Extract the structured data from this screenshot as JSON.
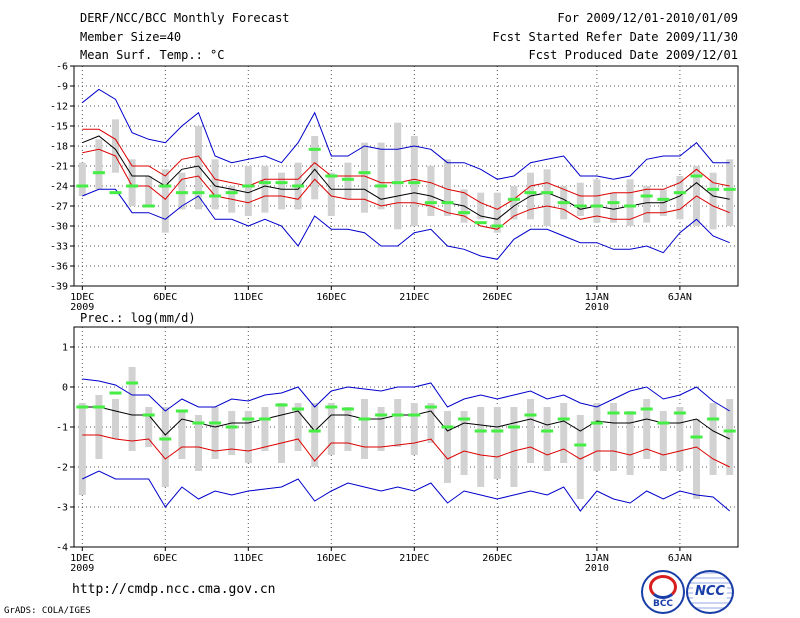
{
  "header": {
    "title": "DERF/NCC/BCC Monthly Forecast",
    "member_size": "Member Size=40",
    "variable": "Mean Surf. Temp.: °C",
    "period": "For 2009/12/01-2010/01/09",
    "fcst_started": "Fcst Started Refer Date 2009/11/30",
    "fcst_produced": "Fcst Produced Date 2009/12/01"
  },
  "footer": {
    "url": "http://cmdp.ncc.cma.gov.cn",
    "credit": "GrADS: COLA/IGES",
    "logo_bcc": "BCC",
    "logo_ncc": "NCC"
  },
  "colors": {
    "blue": "#0000cc",
    "red": "#dd0000",
    "black": "#000000",
    "box": "#d2d2d2",
    "obs": "#44ee44",
    "grid": "#555555"
  },
  "chart_data": [
    {
      "type": "line",
      "title": "Mean Surf. Temp.: °C",
      "ylabel": "°C",
      "ylim": [
        -39,
        -6
      ],
      "yticks": [
        -39,
        -36,
        -33,
        -30,
        -27,
        -24,
        -21,
        -18,
        -15,
        -12,
        -9,
        -6
      ],
      "xlim": [
        0.5,
        40.5
      ],
      "xticks": [
        {
          "day": 1,
          "label": "1DEC",
          "sub": "2009"
        },
        {
          "day": 6,
          "label": "6DEC",
          "sub": ""
        },
        {
          "day": 11,
          "label": "11DEC",
          "sub": ""
        },
        {
          "day": 16,
          "label": "16DEC",
          "sub": ""
        },
        {
          "day": 21,
          "label": "21DEC",
          "sub": ""
        },
        {
          "day": 26,
          "label": "26DEC",
          "sub": ""
        },
        {
          "day": 32,
          "label": "1JAN",
          "sub": "2010"
        },
        {
          "day": 37,
          "label": "6JAN",
          "sub": ""
        }
      ],
      "series": [
        {
          "name": "ensemble max",
          "color": "blue",
          "values": [
            -11.5,
            -9.5,
            -11,
            -16,
            -17,
            -17.5,
            -15,
            -13,
            -19.5,
            -20.5,
            -20,
            -19.5,
            -20.5,
            -17.5,
            -13,
            -19.5,
            -19.5,
            -18,
            -18.5,
            -18.5,
            -18,
            -18.5,
            -20.5,
            -20.5,
            -21.5,
            -23,
            -22.5,
            -20.5,
            -20,
            -19.5,
            -22.5,
            -22.5,
            -23,
            -22.5,
            -20,
            -19.5,
            -19.5,
            -17.5,
            -20.5,
            -20.5
          ]
        },
        {
          "name": "upper",
          "color": "red",
          "values": [
            -15.5,
            -15.5,
            -17,
            -21,
            -21,
            -22.5,
            -20,
            -19.5,
            -23,
            -23.5,
            -24,
            -23,
            -23,
            -23,
            -20.5,
            -22.5,
            -22.5,
            -22.5,
            -23.5,
            -23.5,
            -23,
            -23.5,
            -24.5,
            -25,
            -26.5,
            -27.5,
            -26,
            -24,
            -23.5,
            -24.5,
            -25.5,
            -25.5,
            -25,
            -25,
            -24.5,
            -24.5,
            -23.5,
            -21.5,
            -23.5,
            -24
          ]
        },
        {
          "name": "ensemble mean",
          "color": "black",
          "values": [
            -17.5,
            -16.5,
            -18.5,
            -22.5,
            -22.5,
            -24,
            -21.5,
            -21,
            -24,
            -24.5,
            -25,
            -24,
            -24.5,
            -24.5,
            -21.5,
            -24.5,
            -24.5,
            -24.5,
            -26,
            -25.5,
            -25,
            -25.5,
            -26.5,
            -27,
            -28.5,
            -29,
            -27,
            -25.5,
            -25,
            -26,
            -27.5,
            -27,
            -27.5,
            -27,
            -26.5,
            -26.5,
            -25.5,
            -23.5,
            -25.5,
            -26
          ]
        },
        {
          "name": "lower",
          "color": "red",
          "values": [
            -19,
            -18.5,
            -19.5,
            -24,
            -24,
            -26,
            -23,
            -22.5,
            -25.5,
            -26,
            -26.5,
            -25.5,
            -25.5,
            -26,
            -23,
            -25.5,
            -26,
            -26,
            -27,
            -26.5,
            -26.5,
            -27,
            -28,
            -28.5,
            -30,
            -30.5,
            -28.5,
            -27.5,
            -27,
            -27.5,
            -29,
            -28.5,
            -29,
            -29,
            -28,
            -28,
            -27.5,
            -25.5,
            -27,
            -28
          ]
        },
        {
          "name": "ensemble min",
          "color": "blue",
          "values": [
            -25.5,
            -24.5,
            -24.5,
            -28,
            -28,
            -29,
            -27,
            -25.5,
            -29,
            -29,
            -30,
            -29,
            -30,
            -33,
            -28.5,
            -30.5,
            -30.5,
            -31,
            -33,
            -33,
            -31,
            -30.5,
            -33,
            -33.5,
            -34.5,
            -35,
            -32,
            -30.5,
            -30.5,
            -31.5,
            -32.5,
            -32.5,
            -33.5,
            -33.5,
            -33,
            -34,
            -31,
            -29,
            -31.5,
            -32.5
          ]
        }
      ],
      "boxes": {
        "low": [
          -25.5,
          -24.5,
          -22,
          -27,
          -27,
          -31,
          -27.5,
          -27.5,
          -27.5,
          -28,
          -28.5,
          -28,
          -27.5,
          -27.5,
          -26,
          -28.5,
          -26,
          -28,
          -27.5,
          -30.5,
          -30,
          -28.5,
          -28.5,
          -29.5,
          -29,
          -31,
          -29,
          -29,
          -30,
          -29,
          -28.5,
          -29.5,
          -29.5,
          -30,
          -29.5,
          -28.5,
          -29,
          -30,
          -30.5,
          -30
        ],
        "high": [
          -20.5,
          -17,
          -14,
          -20,
          -22.5,
          -21.5,
          -22,
          -15,
          -20,
          -24,
          -21,
          -21,
          -22,
          -20.5,
          -16.5,
          -22,
          -20.5,
          -17.5,
          -17.5,
          -14.5,
          -16.5,
          -21,
          -20,
          -24.5,
          -25,
          -25,
          -24,
          -22,
          -21.5,
          -24,
          -23.5,
          -23,
          -25,
          -23,
          -24,
          -24.5,
          -22.5,
          -21,
          -22,
          -20
        ]
      },
      "observed": [
        -24,
        -22,
        -25,
        -24,
        -27,
        -24,
        -25,
        -25,
        -25.5,
        -25,
        -24,
        -23.5,
        -23.5,
        -24,
        -18.5,
        -22.5,
        -23,
        -22,
        -24,
        -23.5,
        -23.5,
        -26.5,
        -26.5,
        -28,
        -29.5,
        -30,
        -26,
        -25,
        -25,
        -26.5,
        -27,
        -27,
        -26.5,
        -27,
        -25.5,
        -26,
        -25,
        -22.5,
        -24.5,
        -24.5
      ]
    },
    {
      "type": "line",
      "title": "Prec.: log(mm/d)",
      "ylabel": "log(mm/d)",
      "ylim": [
        -4,
        1.5
      ],
      "yticks": [
        -4,
        -3,
        -2,
        -1,
        0,
        1
      ],
      "xlim": [
        0.5,
        40.5
      ],
      "xticks": [
        {
          "day": 1,
          "label": "1DEC",
          "sub": "2009"
        },
        {
          "day": 6,
          "label": "6DEC",
          "sub": ""
        },
        {
          "day": 11,
          "label": "11DEC",
          "sub": ""
        },
        {
          "day": 16,
          "label": "16DEC",
          "sub": ""
        },
        {
          "day": 21,
          "label": "21DEC",
          "sub": ""
        },
        {
          "day": 26,
          "label": "26DEC",
          "sub": ""
        },
        {
          "day": 32,
          "label": "1JAN",
          "sub": "2010"
        },
        {
          "day": 37,
          "label": "6JAN",
          "sub": ""
        }
      ],
      "series": [
        {
          "name": "ensemble max",
          "color": "blue",
          "values": [
            0.2,
            0.15,
            0.05,
            -0.2,
            -0.2,
            -0.6,
            -0.3,
            -0.5,
            -0.5,
            -0.3,
            -0.35,
            -0.2,
            -0.15,
            0,
            -0.5,
            -0.1,
            0,
            -0.05,
            -0.1,
            0,
            0,
            0.1,
            -0.5,
            -0.3,
            -0.2,
            -0.3,
            -0.2,
            -0.1,
            -0.3,
            -0.2,
            -0.4,
            -0.5,
            -0.3,
            -0.1,
            0,
            -0.3,
            -0.2,
            0,
            -0.35,
            -0.6
          ]
        },
        {
          "name": "upper",
          "color": "black",
          "values": [
            -0.5,
            -0.5,
            -0.6,
            -0.7,
            -0.7,
            -1.2,
            -0.8,
            -0.9,
            -1,
            -0.9,
            -0.9,
            -0.8,
            -0.7,
            -0.6,
            -1.1,
            -0.7,
            -0.7,
            -0.8,
            -0.8,
            -0.7,
            -0.7,
            -0.6,
            -1.1,
            -0.9,
            -0.95,
            -1,
            -0.9,
            -0.8,
            -0.95,
            -0.85,
            -1.1,
            -0.85,
            -0.9,
            -0.9,
            -0.8,
            -0.9,
            -0.9,
            -0.8,
            -1.1,
            -1.3
          ]
        },
        {
          "name": "ensemble mean",
          "color": "red",
          "values": [
            -1.2,
            -1.2,
            -1.3,
            -1.35,
            -1.3,
            -1.8,
            -1.5,
            -1.5,
            -1.6,
            -1.55,
            -1.6,
            -1.5,
            -1.4,
            -1.3,
            -1.85,
            -1.4,
            -1.4,
            -1.5,
            -1.5,
            -1.45,
            -1.4,
            -1.3,
            -1.8,
            -1.6,
            -1.7,
            -1.75,
            -1.6,
            -1.5,
            -1.7,
            -1.55,
            -1.8,
            -1.6,
            -1.6,
            -1.7,
            -1.55,
            -1.7,
            -1.6,
            -1.5,
            -1.8,
            -2
          ]
        },
        {
          "name": "ensemble min",
          "color": "blue",
          "values": [
            -2.3,
            -2.1,
            -2.3,
            -2.3,
            -2.3,
            -3,
            -2.5,
            -2.8,
            -2.6,
            -2.7,
            -2.6,
            -2.55,
            -2.5,
            -2.3,
            -2.85,
            -2.6,
            -2.4,
            -2.5,
            -2.6,
            -2.5,
            -2.6,
            -2.4,
            -2.9,
            -2.6,
            -2.7,
            -2.8,
            -2.7,
            -2.6,
            -2.7,
            -2.5,
            -3.1,
            -2.6,
            -2.8,
            -2.9,
            -2.6,
            -2.8,
            -2.6,
            -2.7,
            -2.75,
            -3.1
          ]
        }
      ],
      "boxes": {
        "low": [
          -2.7,
          -1.8,
          -1.3,
          -1.6,
          -1.5,
          -2.5,
          -1.8,
          -2.1,
          -1.8,
          -1.7,
          -1.9,
          -1.6,
          -1.9,
          -1.6,
          -2,
          -1.7,
          -1.6,
          -1.8,
          -1.6,
          -1.5,
          -1.7,
          -1.4,
          -2.4,
          -2.2,
          -2.5,
          -2.3,
          -2.5,
          -1.9,
          -2.1,
          -1.9,
          -2.8,
          -2.1,
          -2.1,
          -2.2,
          -1.8,
          -2.1,
          -2.1,
          -2.8,
          -2.2,
          -2.2
        ],
        "high": [
          -0.4,
          -0.2,
          -0.3,
          0.5,
          -0.5,
          -0.5,
          -0.6,
          -0.7,
          -0.5,
          -0.6,
          -0.6,
          -0.5,
          -0.4,
          -0.4,
          -0.4,
          -0.4,
          -0.5,
          -0.3,
          -0.5,
          -0.3,
          -0.4,
          -0.4,
          -0.6,
          -0.6,
          -0.5,
          -0.5,
          -0.5,
          -0.3,
          -0.5,
          -0.4,
          -0.7,
          -0.4,
          -0.4,
          -0.6,
          -0.3,
          -0.6,
          -0.5,
          -0.8,
          -0.4,
          -0.3
        ]
      },
      "observed": [
        -0.5,
        -0.5,
        -0.15,
        0.1,
        -0.7,
        -1.3,
        -0.6,
        -0.9,
        -0.9,
        -1,
        -0.8,
        -0.8,
        -0.45,
        -0.55,
        -1.1,
        -0.5,
        -0.55,
        -0.8,
        -0.7,
        -0.7,
        -0.7,
        -0.5,
        -1,
        -0.8,
        -1.1,
        -1.1,
        -1,
        -0.7,
        -1.1,
        -0.8,
        -1.45,
        -0.9,
        -0.65,
        -0.65,
        -0.55,
        -0.9,
        -0.65,
        -1.25,
        -0.8,
        -1.1
      ]
    }
  ]
}
